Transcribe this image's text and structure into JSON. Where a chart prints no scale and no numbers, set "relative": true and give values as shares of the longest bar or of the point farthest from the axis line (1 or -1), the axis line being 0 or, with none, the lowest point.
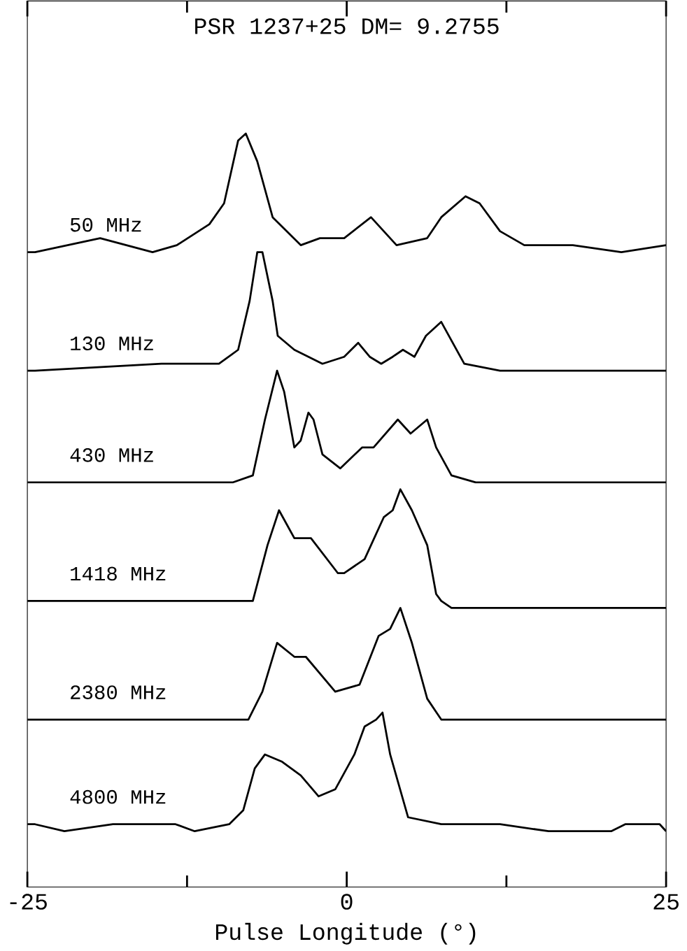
{
  "chart_data": {
    "type": "line",
    "title": "PSR 1237+25    DM= 9.2755",
    "xlabel": "Pulse Longitude (°)",
    "relative": true,
    "xlim": [
      -25,
      25
    ],
    "xticks": [
      -25,
      0,
      25
    ],
    "marker": "none",
    "line_style": "solid",
    "series": [
      {
        "name": "50 MHz",
        "color": "#000000",
        "x": [
          -25,
          -24.4,
          -19.3,
          -15.2,
          -13.3,
          -10.75,
          -9.6,
          -8.5,
          -7.9,
          -7.0,
          -5.8,
          -3.6,
          -2.1,
          -0.2,
          1.9,
          3.9,
          6.3,
          7.4,
          9.3,
          10.4,
          12.0,
          13.9,
          17.7,
          21.5,
          25
        ],
        "values": [
          0.83,
          0.83,
          0.85,
          0.83,
          0.84,
          0.87,
          0.9,
          0.99,
          1.0,
          0.96,
          0.88,
          0.84,
          0.85,
          0.85,
          0.88,
          0.84,
          0.85,
          0.88,
          0.91,
          0.9,
          0.86,
          0.84,
          0.84,
          0.83,
          0.84
        ]
      },
      {
        "name": "130 MHz",
        "color": "#000000",
        "x": [
          -25,
          -24.4,
          -14.5,
          -10.0,
          -8.5,
          -7.6,
          -7.0,
          -6.6,
          -5.8,
          -5.4,
          -4.1,
          -1.9,
          -0.2,
          0.9,
          1.8,
          2.7,
          3.6,
          4.4,
          5.3,
          6.2,
          7.4,
          7.7,
          9.2,
          12.0,
          17.7,
          25
        ],
        "values": [
          0.66,
          0.66,
          0.67,
          0.67,
          0.69,
          0.76,
          0.83,
          0.83,
          0.76,
          0.71,
          0.69,
          0.67,
          0.68,
          0.7,
          0.68,
          0.67,
          0.68,
          0.69,
          0.68,
          0.71,
          0.73,
          0.72,
          0.67,
          0.66,
          0.66,
          0.66
        ]
      },
      {
        "name": "430 MHz",
        "color": "#000000",
        "x": [
          -25,
          -24.4,
          -8.9,
          -7.35,
          -6.4,
          -5.45,
          -4.9,
          -4.1,
          -3.6,
          -3.0,
          -2.6,
          -1.9,
          -0.5,
          1.2,
          2.1,
          4.0,
          5.0,
          6.3,
          7.0,
          8.2,
          10.1,
          25
        ],
        "values": [
          0.5,
          0.5,
          0.5,
          0.51,
          0.59,
          0.66,
          0.63,
          0.55,
          0.56,
          0.6,
          0.59,
          0.54,
          0.52,
          0.55,
          0.55,
          0.59,
          0.57,
          0.59,
          0.55,
          0.51,
          0.5,
          0.5
        ]
      },
      {
        "name": "1418 MHz",
        "color": "#000000",
        "x": [
          -25,
          -24.4,
          -7.7,
          -7.35,
          -6.2,
          -5.3,
          -4.1,
          -2.8,
          -0.7,
          -0.2,
          1.4,
          2.9,
          3.6,
          4.2,
          5.1,
          6.3,
          7.0,
          7.4,
          8.2,
          25
        ],
        "values": [
          0.33,
          0.33,
          0.33,
          0.33,
          0.41,
          0.46,
          0.42,
          0.42,
          0.37,
          0.37,
          0.39,
          0.45,
          0.46,
          0.49,
          0.46,
          0.41,
          0.34,
          0.33,
          0.32,
          0.32
        ]
      },
      {
        "name": "2380 MHz",
        "color": "#000000",
        "x": [
          -25,
          -24.4,
          -7.7,
          -6.6,
          -5.45,
          -4.1,
          -3.2,
          -0.9,
          1.0,
          2.5,
          3.4,
          4.2,
          5.1,
          6.3,
          7.4,
          25
        ],
        "values": [
          0.16,
          0.16,
          0.16,
          0.2,
          0.27,
          0.25,
          0.25,
          0.2,
          0.21,
          0.28,
          0.29,
          0.32,
          0.27,
          0.19,
          0.16,
          0.16
        ]
      },
      {
        "name": "4800 MHz",
        "color": "#000000",
        "x": [
          -25,
          -24.4,
          -22.1,
          -18.3,
          -13.4,
          -11.9,
          -9.2,
          -8.1,
          -7.2,
          -6.4,
          -5.1,
          -3.6,
          -2.2,
          -0.9,
          0.6,
          1.4,
          2.3,
          2.8,
          3.4,
          4.8,
          7.4,
          12.0,
          15.8,
          20.7,
          21.8,
          23.3,
          24.5,
          25
        ],
        "values": [
          0.01,
          0.01,
          0.0,
          0.01,
          0.01,
          0.0,
          0.01,
          0.03,
          0.09,
          0.11,
          0.1,
          0.08,
          0.05,
          0.06,
          0.11,
          0.15,
          0.16,
          0.17,
          0.11,
          0.02,
          0.01,
          0.01,
          0.0,
          0.0,
          0.01,
          0.01,
          0.01,
          0.0
        ]
      }
    ]
  }
}
